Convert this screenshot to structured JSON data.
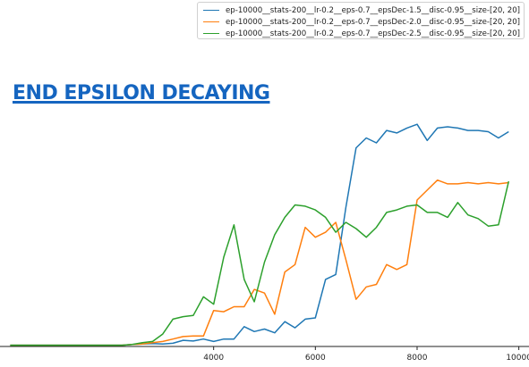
{
  "heading": "END EPSILON DECAYING",
  "chart_data": {
    "type": "line",
    "xlim": [
      -200,
      10200
    ],
    "ylim": [
      0,
      100
    ],
    "x_ticks": [
      4000,
      6000,
      8000,
      10000
    ],
    "x_tick_labels": [
      "4000",
      "6000",
      "8000",
      "10000"
    ],
    "legend_position": "top-right",
    "x": [
      0,
      200,
      400,
      600,
      800,
      1000,
      1200,
      1400,
      1600,
      1800,
      2000,
      2200,
      2400,
      2600,
      2800,
      3000,
      3200,
      3400,
      3600,
      3800,
      4000,
      4200,
      4400,
      4600,
      4800,
      5000,
      5200,
      5400,
      5600,
      5800,
      6000,
      6200,
      6400,
      6600,
      6800,
      7000,
      7200,
      7400,
      7600,
      7800,
      8000,
      8200,
      8400,
      8600,
      8800,
      9000,
      9200,
      9400,
      9600,
      9800
    ],
    "series": [
      {
        "name": "ep-10000__stats-200__lr-0.2__eps-0.7__epsDec-1.5__disc-0.95__size-[20, 20]",
        "color": "#1f77b4",
        "values": [
          0.5,
          0.5,
          0.5,
          0.5,
          0.5,
          0.5,
          0.5,
          0.5,
          0.5,
          0.5,
          0.5,
          0.5,
          0.8,
          1.0,
          1.2,
          1.0,
          1.3,
          2.5,
          2.2,
          3.0,
          2.0,
          3.0,
          3.0,
          8.0,
          6.0,
          7.0,
          5.5,
          10.0,
          7.5,
          11.0,
          11.5,
          27.0,
          29.0,
          56.0,
          80.0,
          84.0,
          82.0,
          87.0,
          86.0,
          88.0,
          89.5,
          83.0,
          88.0,
          88.5,
          88.0,
          87.0,
          87.0,
          86.5,
          84.0,
          86.5
        ]
      },
      {
        "name": "ep-10000__stats-200__lr-0.2__eps-0.7__epsDec-2.0__disc-0.95__size-[20, 20]",
        "color": "#ff7f0e",
        "values": [
          0.5,
          0.5,
          0.5,
          0.5,
          0.5,
          0.5,
          0.5,
          0.5,
          0.5,
          0.5,
          0.5,
          0.5,
          0.8,
          1.0,
          1.5,
          2.0,
          3.0,
          4.0,
          4.2,
          4.2,
          14.5,
          14.0,
          16.0,
          16.0,
          23.0,
          21.5,
          13.0,
          30.0,
          33.0,
          48.0,
          44.0,
          46.0,
          50.0,
          35.0,
          19.0,
          24.0,
          25.0,
          33.0,
          31.0,
          33.0,
          59.0,
          63.0,
          67.0,
          65.5,
          65.5,
          66.0,
          65.5,
          66.0,
          65.5,
          66.0
        ]
      },
      {
        "name": "ep-10000__stats-200__lr-0.2__eps-0.7__epsDec-2.5__disc-0.95__size-[20, 20]",
        "color": "#2ca02c",
        "values": [
          0.5,
          0.5,
          0.5,
          0.5,
          0.5,
          0.5,
          0.5,
          0.5,
          0.5,
          0.5,
          0.5,
          0.5,
          0.8,
          1.5,
          2.0,
          5.0,
          11.0,
          12.0,
          12.5,
          20.0,
          17.0,
          36.0,
          49.0,
          27.0,
          18.0,
          34.0,
          45.0,
          52.0,
          57.0,
          56.5,
          55.0,
          52.0,
          46.0,
          50.0,
          47.5,
          44.0,
          48.0,
          54.0,
          55.0,
          56.5,
          57.0,
          54.0,
          54.0,
          52.0,
          58.0,
          53.0,
          51.5,
          48.5,
          49.0,
          66.5
        ]
      }
    ]
  }
}
